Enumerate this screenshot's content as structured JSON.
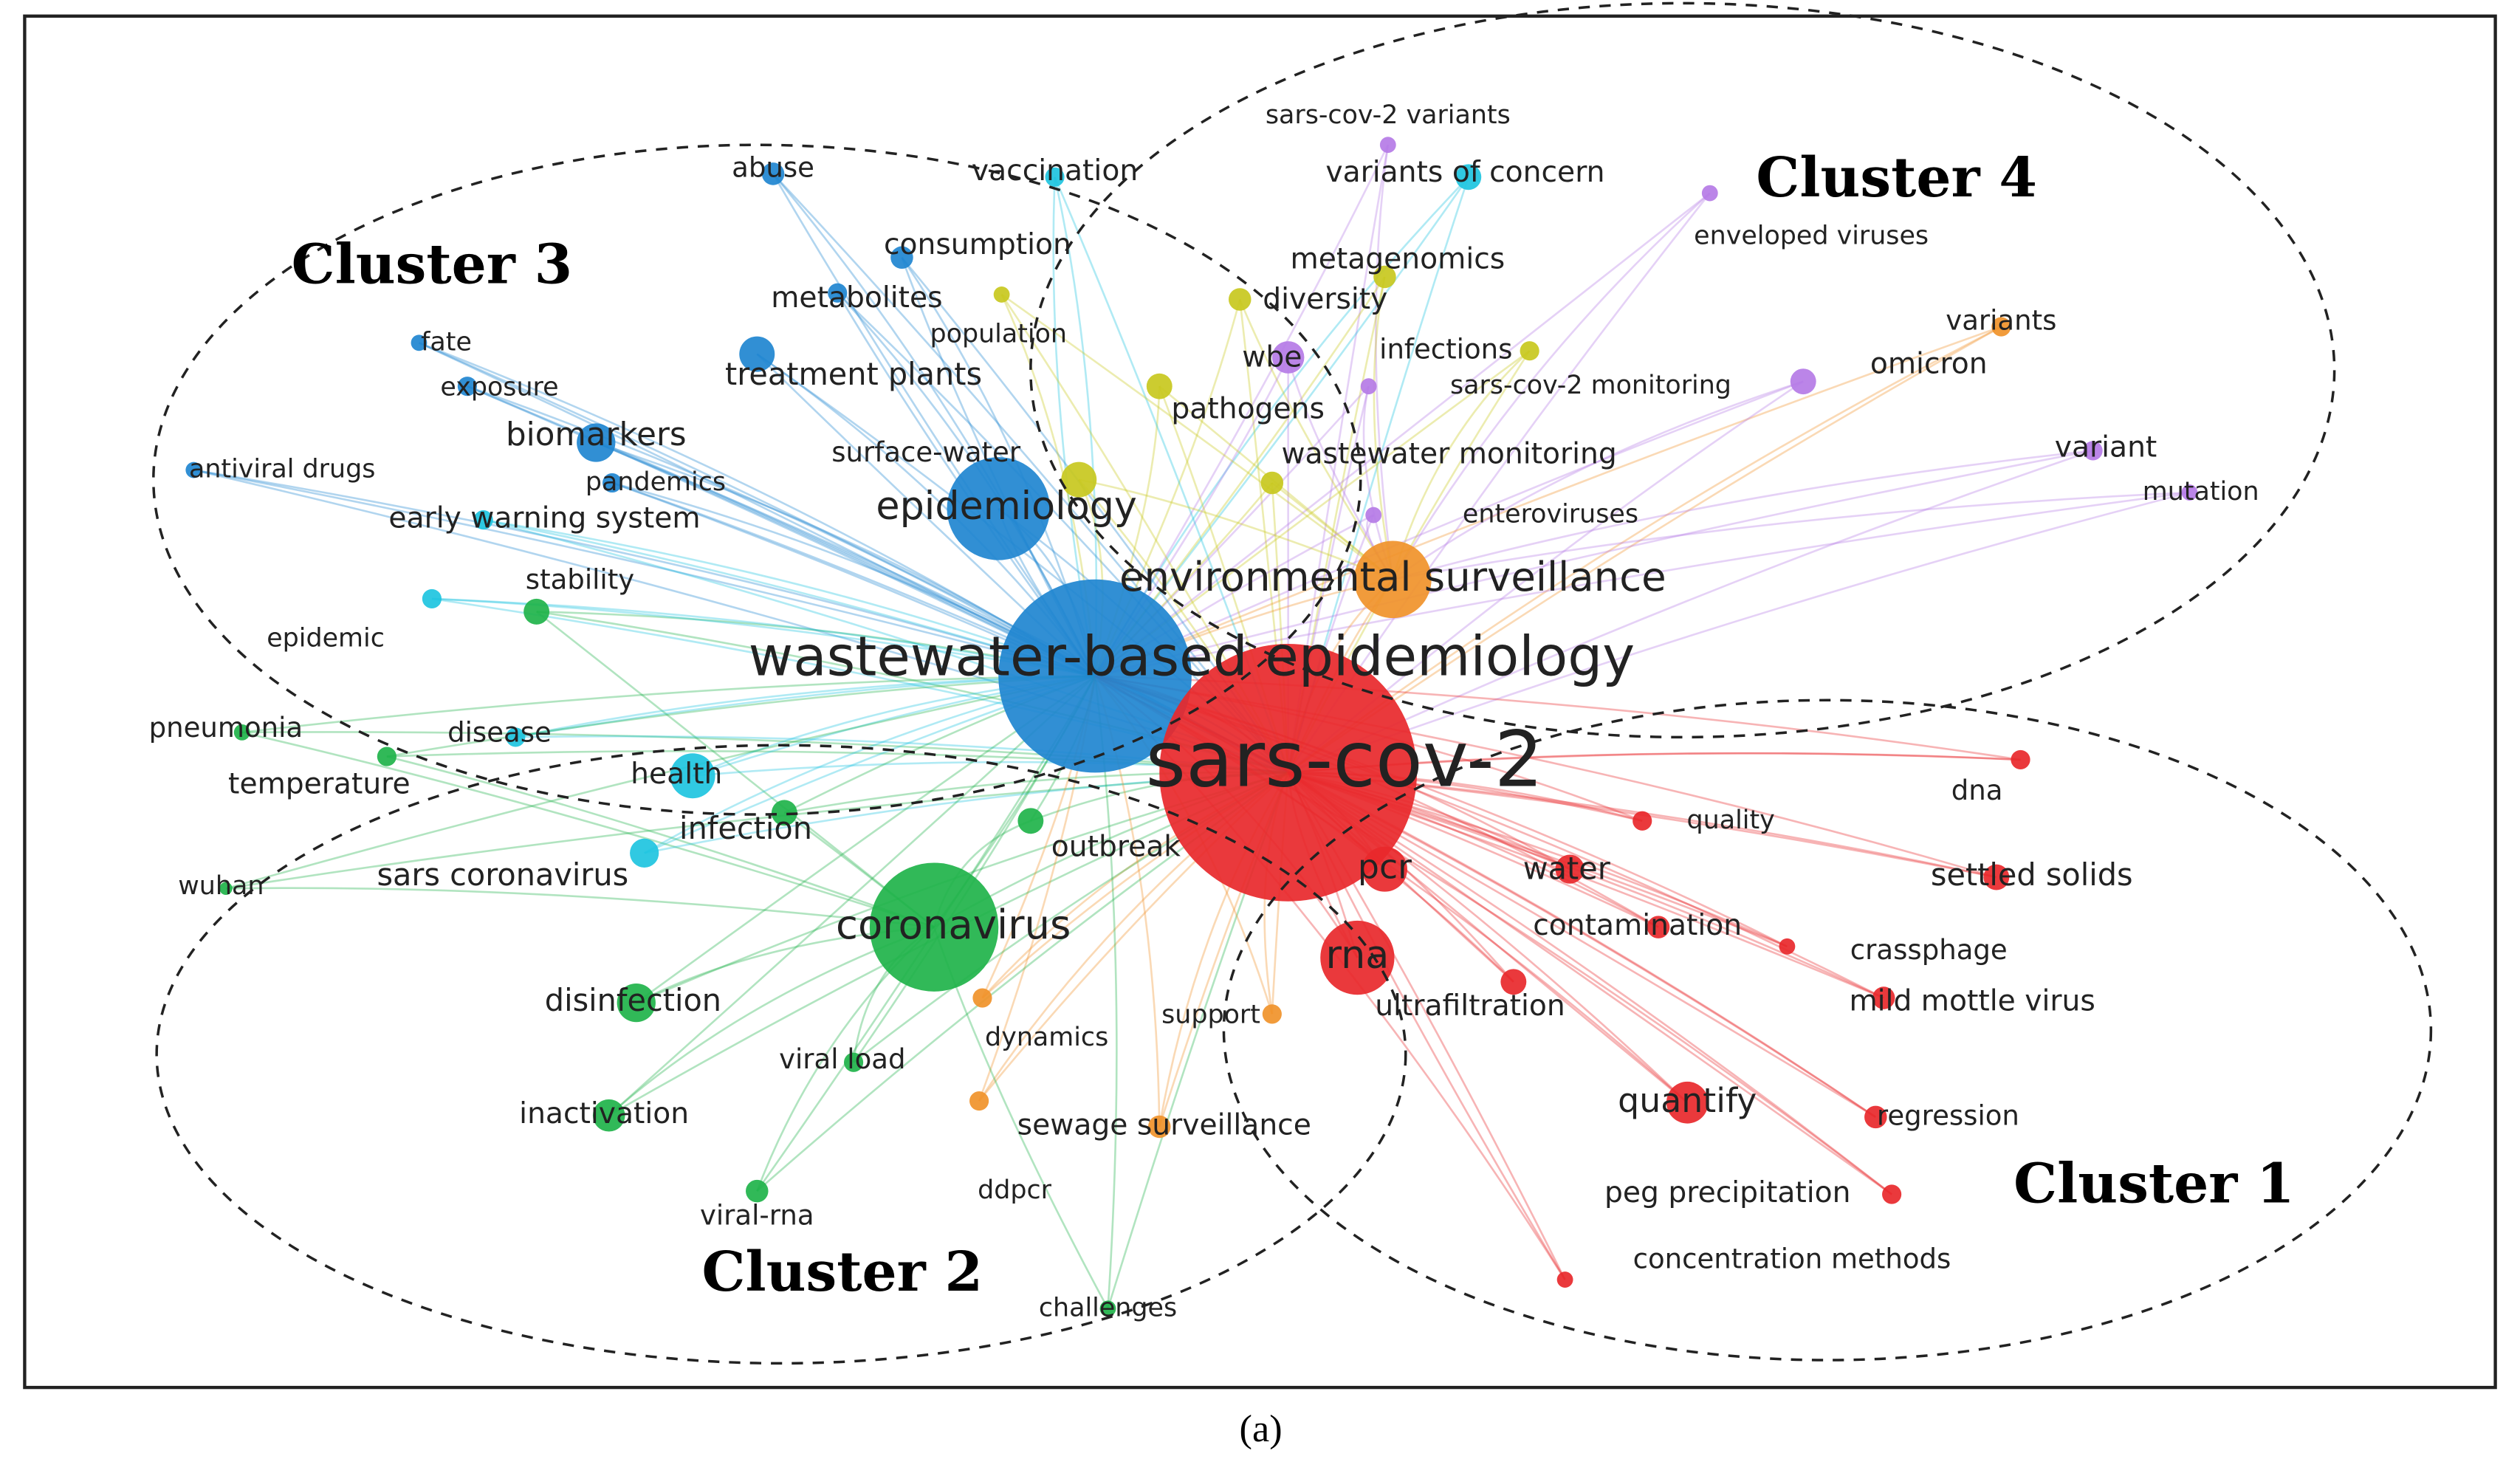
{
  "clusters": [
    {
      "label": "Cluster 1"
    },
    {
      "label": "Cluster 2"
    },
    {
      "label": "Cluster 3"
    },
    {
      "label": "Cluster 4"
    }
  ],
  "nodes": [
    {
      "label": "sars-cov-2 variants",
      "color": "#b57be6"
    },
    {
      "label": "variants of concern",
      "color": "#1ec4e0"
    },
    {
      "label": "metagenomics",
      "color": "#c8c81e"
    },
    {
      "label": "enveloped viruses",
      "color": "#b57be6"
    },
    {
      "label": "diversity",
      "color": "#c8c81e"
    },
    {
      "label": "variants",
      "color": "#f0932a"
    },
    {
      "label": "wbe",
      "color": "#b57be6"
    },
    {
      "label": "infections",
      "color": "#c8c81e"
    },
    {
      "label": "omicron",
      "color": "#b57be6"
    },
    {
      "label": "sars-cov-2 monitoring",
      "color": "#b57be6"
    },
    {
      "label": "pathogens",
      "color": "#c8c81e"
    },
    {
      "label": "variant",
      "color": "#b57be6"
    },
    {
      "label": "mutation",
      "color": "#b57be6"
    },
    {
      "label": "wastewater monitoring",
      "color": "#c8c81e"
    },
    {
      "label": "enteroviruses",
      "color": "#b57be6"
    },
    {
      "label": "environmental surveillance",
      "color": "#f0932a"
    },
    {
      "label": "abuse",
      "color": "#1f86d0"
    },
    {
      "label": "vaccination",
      "color": "#1ec4e0"
    },
    {
      "label": "consumption",
      "color": "#1f86d0"
    },
    {
      "label": "metabolites",
      "color": "#1f86d0"
    },
    {
      "label": "population",
      "color": "#c8c81e"
    },
    {
      "label": "fate",
      "color": "#1f86d0"
    },
    {
      "label": "treatment plants",
      "color": "#1f86d0"
    },
    {
      "label": "exposure",
      "color": "#1f86d0"
    },
    {
      "label": "biomarkers",
      "color": "#1f86d0"
    },
    {
      "label": "surface-water",
      "color": "#c8c81e"
    },
    {
      "label": "antiviral drugs",
      "color": "#1f86d0"
    },
    {
      "label": "pandemics",
      "color": "#1f86d0"
    },
    {
      "label": "early warning system",
      "color": "#1ec4e0"
    },
    {
      "label": "epidemiology",
      "color": "#1f86d0"
    },
    {
      "label": "stability",
      "color": "#1fb34a"
    },
    {
      "label": "epidemic",
      "color": "#1ec4e0"
    },
    {
      "label": "wastewater-based epidemiology",
      "color": "#1f86d0"
    },
    {
      "label": "pneumonia",
      "color": "#1fb34a"
    },
    {
      "label": "disease",
      "color": "#1ec4e0"
    },
    {
      "label": "temperature",
      "color": "#1fb34a"
    },
    {
      "label": "health",
      "color": "#1ec4e0"
    },
    {
      "label": "infection",
      "color": "#1fb34a"
    },
    {
      "label": "wuhan",
      "color": "#1fb34a"
    },
    {
      "label": "sars coronavirus",
      "color": "#1ec4e0"
    },
    {
      "label": "outbreak",
      "color": "#1fb34a"
    },
    {
      "label": "coronavirus",
      "color": "#1fb34a"
    },
    {
      "label": "disinfection",
      "color": "#1fb34a"
    },
    {
      "label": "dynamics",
      "color": "#f0932a"
    },
    {
      "label": "viral load",
      "color": "#1fb34a"
    },
    {
      "label": "inactivation",
      "color": "#1fb34a"
    },
    {
      "label": "sewage surveillance",
      "color": "#f0932a"
    },
    {
      "label": "ddpcr",
      "color": "#f0932a"
    },
    {
      "label": "viral-rna",
      "color": "#1fb34a"
    },
    {
      "label": "challenges",
      "color": "#1fb34a"
    },
    {
      "label": "sars-cov-2",
      "color": "#e8282b"
    },
    {
      "label": "quality",
      "color": "#e8282b"
    },
    {
      "label": "dna",
      "color": "#e8282b"
    },
    {
      "label": "pcr",
      "color": "#e8282b"
    },
    {
      "label": "water",
      "color": "#e8282b"
    },
    {
      "label": "settled solids",
      "color": "#e8282b"
    },
    {
      "label": "contamination",
      "color": "#e8282b"
    },
    {
      "label": "crassphage",
      "color": "#e8282b"
    },
    {
      "label": "rna",
      "color": "#e8282b"
    },
    {
      "label": "ultrafiltration",
      "color": "#e8282b"
    },
    {
      "label": "support",
      "color": "#f0932a"
    },
    {
      "label": "mild mottle virus",
      "color": "#e8282b"
    },
    {
      "label": "quantify",
      "color": "#e8282b"
    },
    {
      "label": "regression",
      "color": "#e8282b"
    },
    {
      "label": "peg precipitation",
      "color": "#e8282b"
    },
    {
      "label": "concentration methods",
      "color": "#e8282b"
    }
  ],
  "caption": "(a)"
}
